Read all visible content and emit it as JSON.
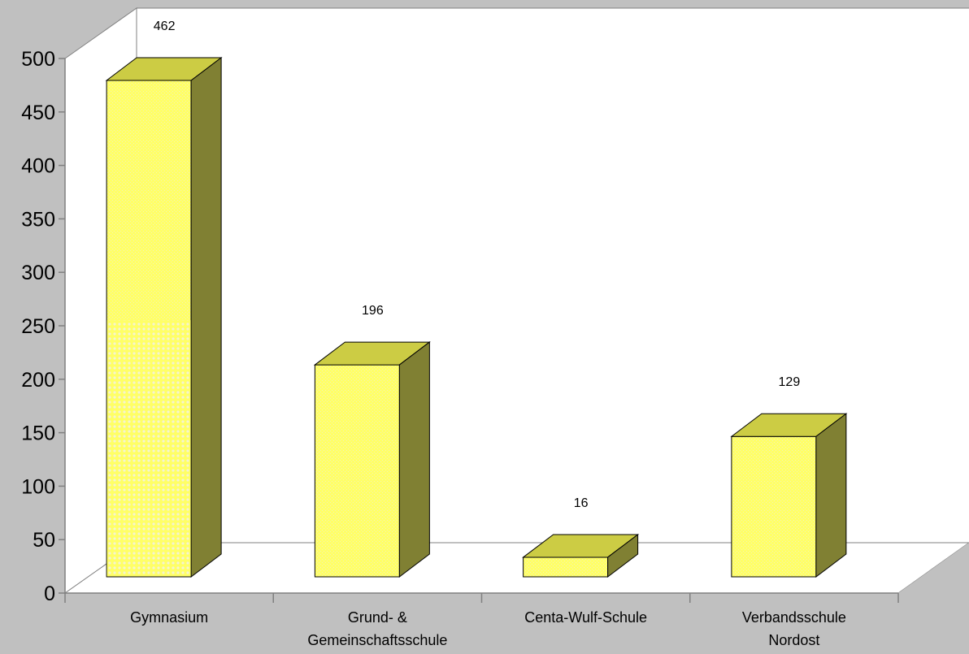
{
  "chart_data": {
    "type": "bar",
    "three_d": true,
    "title": "",
    "xlabel": "",
    "ylabel": "",
    "ylim": [
      0,
      500
    ],
    "yticks": [
      0,
      50,
      100,
      150,
      200,
      250,
      300,
      350,
      400,
      450,
      500
    ],
    "categories": [
      [
        "Gymnasium"
      ],
      [
        "Grund- &",
        "Gemeinschaftsschule"
      ],
      [
        "Centa-Wulf-Schule"
      ],
      [
        "Verbandsschule",
        "Nordost"
      ]
    ],
    "values": [
      462,
      196,
      16,
      129
    ],
    "data_labels": [
      "462",
      "196",
      "16",
      "129"
    ],
    "grid": false,
    "legend": "none",
    "colors": {
      "background": "#c0c0c0",
      "plot_wall": "#ffffff",
      "bar_front": "#ffff66",
      "bar_top": "#cccc44",
      "bar_side": "#808033",
      "outline": "#000000",
      "axis_line": "#808080"
    }
  }
}
